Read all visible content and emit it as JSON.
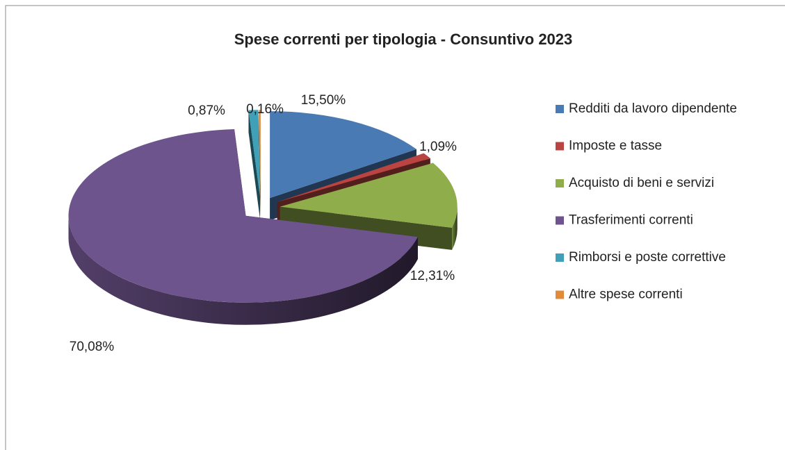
{
  "chart_data": {
    "type": "pie3d",
    "title": "Spese correnti per tipologia - Consuntivo 2023",
    "categories": [
      "Redditi da lavoro dipendente",
      "Imposte e tasse",
      "Acquisto di beni e servizi",
      "Trasferimenti correnti",
      "Rimborsi e poste correttive",
      "Altre spese correnti"
    ],
    "values": [
      15.5,
      1.09,
      12.31,
      70.08,
      0.87,
      0.16
    ],
    "value_labels": [
      "15,50%",
      "1,09%",
      "12,31%",
      "70,08%",
      "0,87%",
      "0,16%"
    ],
    "colors": [
      "#4a7ab4",
      "#b94441",
      "#8fad4a",
      "#6e548c",
      "#3fa0b8",
      "#e08a3a"
    ],
    "legend": "right"
  }
}
